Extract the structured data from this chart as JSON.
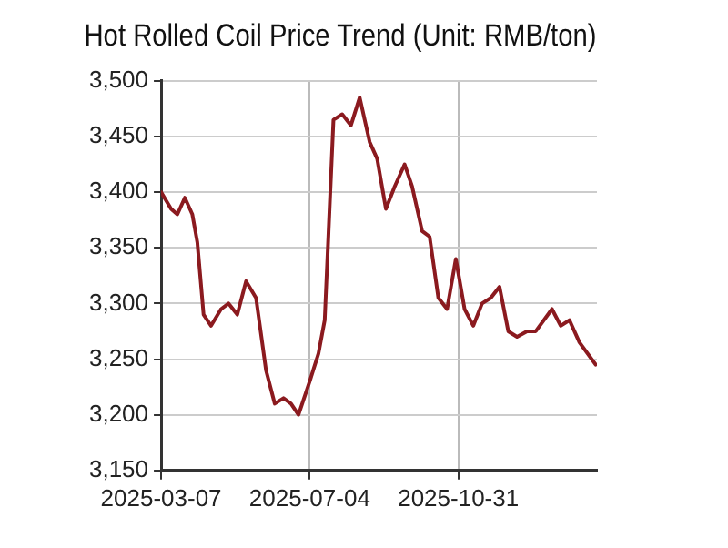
{
  "chart_data": {
    "type": "line",
    "title": "Hot Rolled Coil Price Trend (Unit: RMB/ton)",
    "x": [
      "2025-03-07",
      "2025-03-15",
      "2025-03-20",
      "2025-03-26",
      "2025-04-01",
      "2025-04-05",
      "2025-04-10",
      "2025-04-16",
      "2025-04-24",
      "2025-04-30",
      "2025-05-07",
      "2025-05-14",
      "2025-05-22",
      "2025-05-30",
      "2025-06-06",
      "2025-06-13",
      "2025-06-19",
      "2025-06-25",
      "2025-07-04",
      "2025-07-11",
      "2025-07-16",
      "2025-07-23",
      "2025-07-30",
      "2025-08-06",
      "2025-08-13",
      "2025-08-21",
      "2025-08-27",
      "2025-09-03",
      "2025-09-10",
      "2025-09-18",
      "2025-09-24",
      "2025-10-02",
      "2025-10-08",
      "2025-10-15",
      "2025-10-22",
      "2025-10-29",
      "2025-11-05",
      "2025-11-12",
      "2025-11-19",
      "2025-11-26",
      "2025-12-03",
      "2025-12-10",
      "2025-12-17",
      "2025-12-25",
      "2026-01-01",
      "2026-01-14",
      "2026-01-21",
      "2026-01-28",
      "2026-02-05",
      "2026-02-18"
    ],
    "series": [
      {
        "color": "#8b1a1f",
        "values": [
          3400,
          3385,
          3380,
          3395,
          3380,
          3355,
          3290,
          3280,
          3295,
          3300,
          3290,
          3320,
          3305,
          3240,
          3210,
          3215,
          3210,
          3200,
          3230,
          3255,
          3285,
          3465,
          3470,
          3460,
          3485,
          3445,
          3430,
          3385,
          3405,
          3425,
          3405,
          3365,
          3360,
          3305,
          3295,
          3340,
          3295,
          3280,
          3300,
          3305,
          3315,
          3275,
          3270,
          3275,
          3275,
          3295,
          3280,
          3285,
          3265,
          3245
        ]
      }
    ],
    "xlim": [
      "2025-03-07",
      "2026-02-19"
    ],
    "xticks": [
      {
        "value": "2025-03-07",
        "label": "2025-03-07"
      },
      {
        "value": "2025-07-04",
        "label": "2025-07-04"
      },
      {
        "value": "2025-10-31",
        "label": "2025-10-31"
      }
    ],
    "ylim": [
      3150,
      3500
    ],
    "yticks": [
      {
        "value": 3150,
        "label": "3,150"
      },
      {
        "value": 3200,
        "label": "3,200"
      },
      {
        "value": 3250,
        "label": "3,250"
      },
      {
        "value": 3300,
        "label": "3,300"
      },
      {
        "value": 3350,
        "label": "3,350"
      },
      {
        "value": 3400,
        "label": "3,400"
      },
      {
        "value": 3450,
        "label": "3,450"
      },
      {
        "value": 3500,
        "label": "3,500"
      }
    ],
    "grid": true,
    "legend": false,
    "marker": "none",
    "line_style": "solid"
  }
}
